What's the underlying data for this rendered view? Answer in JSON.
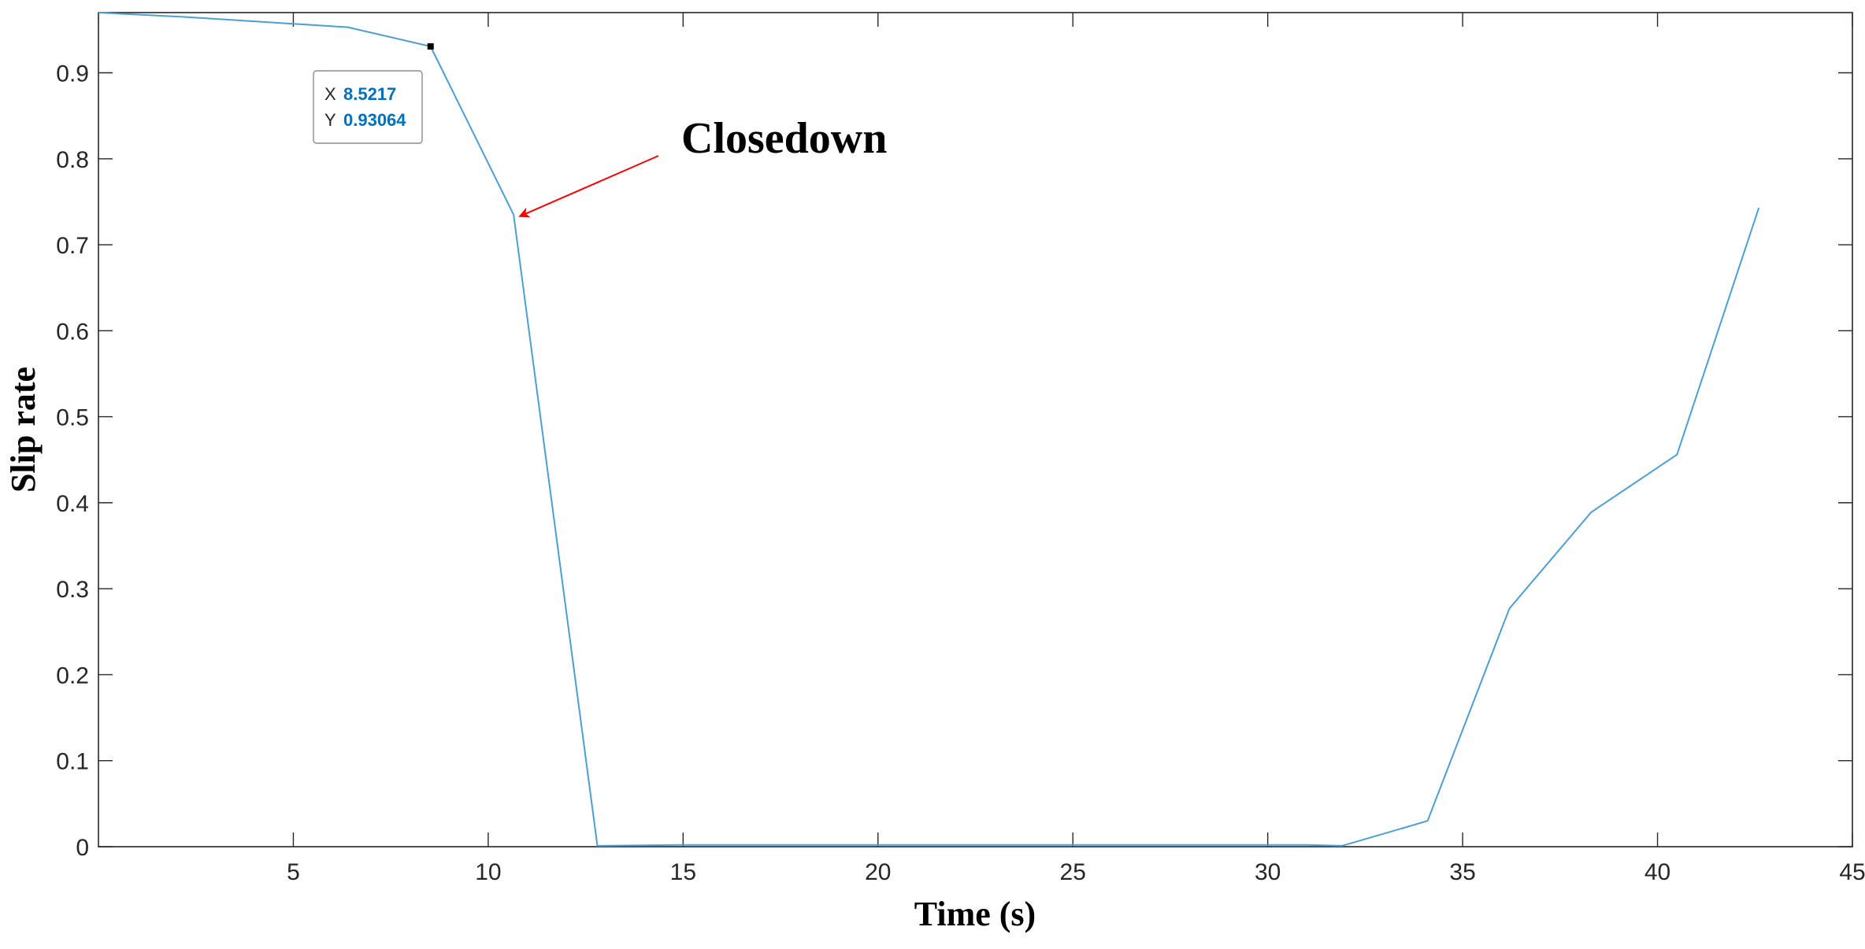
{
  "chart_data": {
    "type": "line",
    "xlabel": "Time (s)",
    "ylabel": "Slip rate",
    "xlim": [
      0,
      45
    ],
    "ylim": [
      0,
      0.97
    ],
    "xticks": [
      5,
      10,
      15,
      20,
      25,
      30,
      35,
      40,
      45
    ],
    "yticks": [
      0,
      0.1,
      0.2,
      0.3,
      0.4,
      0.5,
      0.6,
      0.7,
      0.8,
      0.9
    ],
    "grid": false,
    "series": [
      {
        "color": "#4a9fd8",
        "x": [
          0,
          2.2,
          6.4,
          8.5217,
          10.65,
          12.8,
          14.9,
          17.0,
          19.2,
          21.3,
          23.4,
          25.6,
          27.7,
          29.8,
          31.0,
          31.9,
          34.1,
          36.2,
          38.3,
          40.5,
          42.6
        ],
        "y": [
          0.97,
          0.965,
          0.953,
          0.93064,
          0.735,
          0.001,
          0.002,
          0.002,
          0.002,
          0.002,
          0.002,
          0.002,
          0.002,
          0.002,
          0.002,
          0.001,
          0.03,
          0.277,
          0.389,
          0.456,
          0.743
        ]
      }
    ],
    "datatip": {
      "x": 8.5217,
      "y": 0.93064,
      "x_key": "X",
      "y_key": "Y",
      "x_value": "8.5217",
      "y_value": "0.93064"
    },
    "annotations": [
      {
        "text": "Closedown",
        "arrow_color": "#ff0000",
        "target_x": 10.65,
        "target_y": 0.735
      }
    ]
  }
}
